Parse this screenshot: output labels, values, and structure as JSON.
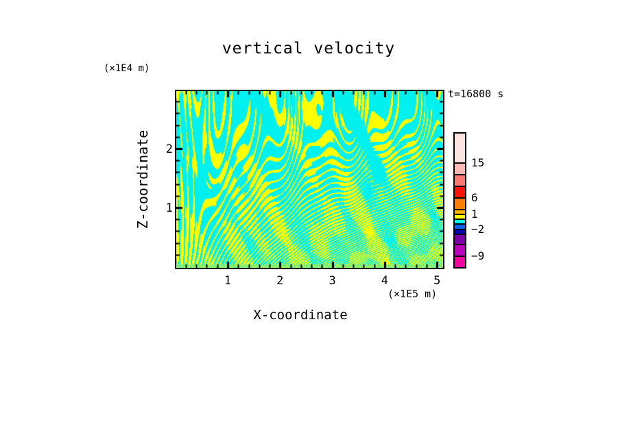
{
  "title": "vertical velocity",
  "time_label": "t=16800 s",
  "x_axis": {
    "label": "X-coordinate",
    "unit": "(×1E5 m)",
    "tick_labels": [
      "1",
      "2",
      "3",
      "4",
      "5"
    ],
    "tick_values": [
      1,
      2,
      3,
      4,
      5
    ],
    "minor_tick_step": 0.2,
    "range": [
      0,
      5.15
    ]
  },
  "y_axis": {
    "label": "Z-coordinate",
    "unit": "(×1E4 m)",
    "tick_labels": [
      "2",
      "1"
    ],
    "tick_values": [
      2,
      1
    ],
    "minor_tick_step": 0.2,
    "range": [
      0,
      3.05
    ]
  },
  "colorbar": {
    "segments": [
      {
        "color": "#FBE3DF",
        "h": 42
      },
      {
        "color": "#FDB8B4",
        "h": 17
      },
      {
        "color": "#FA7A72",
        "h": 17
      },
      {
        "color": "#F91408",
        "h": 17
      },
      {
        "color": "#FB7E00",
        "h": 17
      },
      {
        "color": "#FDB300",
        "h": 7
      },
      {
        "color": "#FFFF00",
        "h": 7
      },
      {
        "color": "#00F0F0",
        "h": 7
      },
      {
        "color": "#0A64FA",
        "h": 8
      },
      {
        "color": "#0000B4",
        "h": 7
      },
      {
        "color": "#7A00A5",
        "h": 15
      },
      {
        "color": "#BC00BC",
        "h": 17
      },
      {
        "color": "#F2059E",
        "h": 17
      }
    ],
    "labels": [
      {
        "text": "15",
        "value": 15,
        "after_segment": 0
      },
      {
        "text": "6",
        "value": 6,
        "after_segment": 3
      },
      {
        "text": "1",
        "value": 1,
        "after_segment": 5
      },
      {
        "text": "−2",
        "value": -2,
        "after_segment": 8
      },
      {
        "text": "−9",
        "value": -9,
        "after_segment": 11
      }
    ]
  },
  "chart_data": {
    "type": "heatmap",
    "title": "vertical velocity",
    "time": "t=16800 s",
    "xlabel": "X-coordinate",
    "ylabel": "Z-coordinate",
    "x_unit": "(×1E5 m)",
    "y_unit": "(×1E4 m)",
    "x_range": [
      0,
      5.15
    ],
    "y_range": [
      0,
      3.05
    ],
    "x_major_ticks": [
      1,
      2,
      3,
      4,
      5
    ],
    "y_major_ticks": [
      1,
      2
    ],
    "minor_tick_step": 0.2,
    "contour_levels": [
      -9,
      -6,
      -3,
      -2,
      -1,
      0,
      1,
      3,
      6,
      9,
      12,
      15
    ],
    "field_colors": {
      "band_0_to_1": "#00F0F0",
      "band_1_to_3": "#FFFF00"
    },
    "legend_position": "right",
    "grid": false,
    "pattern_seed": 20240616,
    "description": "Two-tone vertical-velocity wave field: cyan (≈0–1) background with yellow (≈1–3) streaks; broad tilted chevron plumes aloft that fan down into fine vertical stripes near the lower boundary, with a very fine striped band along the bottom edge."
  }
}
